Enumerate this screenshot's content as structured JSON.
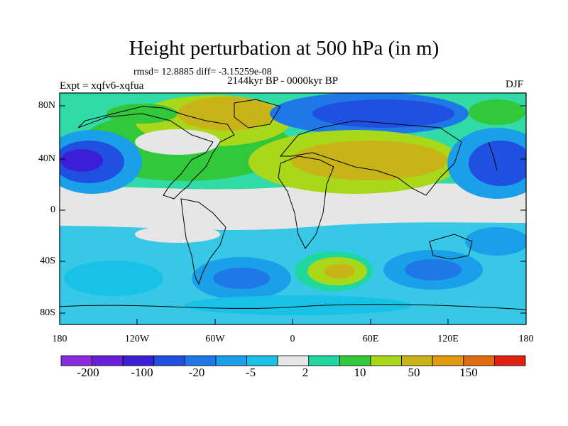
{
  "title": "Height perturbation at 500 hPa (in m)",
  "stats_line": "rmsd= 12.8885 diff= -3.15259e-08",
  "experiment": "Expt = xqfv6-xqfua",
  "period": "2144kyr BP - 0000kyr BP",
  "season": "DJF",
  "y_ticks": [
    "80N",
    "40N",
    "0",
    "40S",
    "80S"
  ],
  "x_ticks": [
    "180",
    "120W",
    "60W",
    "0",
    "60E",
    "120E",
    "180"
  ],
  "colorbar": {
    "colors": [
      "#8a2be2",
      "#6a1fd8",
      "#3b1fd8",
      "#2050e0",
      "#1f78e8",
      "#1aa0e8",
      "#18c2e6",
      "#e6e6e6",
      "#1ed8a0",
      "#32c83c",
      "#a8d818",
      "#c8b418",
      "#e09a10",
      "#e06a10",
      "#e02010"
    ],
    "labels": [
      "-200",
      "-100",
      "-20",
      "-5",
      "2",
      "10",
      "50",
      "150"
    ]
  }
}
